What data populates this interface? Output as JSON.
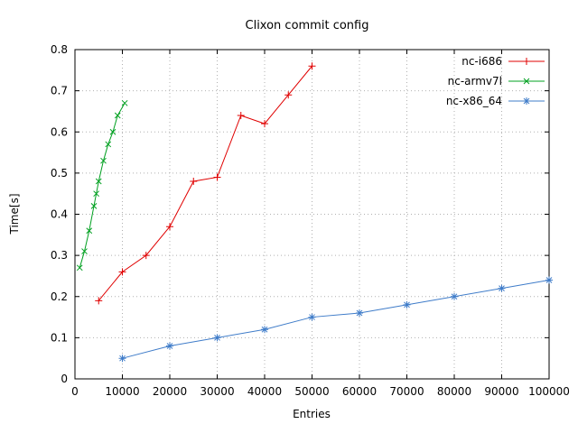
{
  "chart_data": {
    "type": "line",
    "title": "Clixon commit config",
    "xlabel": "Entries",
    "ylabel": "Time[s]",
    "xlim": [
      0,
      100000
    ],
    "ylim": [
      0,
      0.8
    ],
    "xticks": [
      0,
      10000,
      20000,
      30000,
      40000,
      50000,
      60000,
      70000,
      80000,
      90000,
      100000
    ],
    "yticks": [
      0,
      0.1,
      0.2,
      0.3,
      0.4,
      0.5,
      0.6,
      0.7,
      0.8
    ],
    "grid": true,
    "grid_color": "#b0b0b0",
    "border_color": "#000000",
    "legend": {
      "position": "top-right-inside"
    },
    "series": [
      {
        "name": "nc-i686",
        "color": "#e00000",
        "marker": "plus",
        "points": [
          [
            5000,
            0.19
          ],
          [
            10000,
            0.26
          ],
          [
            15000,
            0.3
          ],
          [
            20000,
            0.37
          ],
          [
            25000,
            0.48
          ],
          [
            30000,
            0.49
          ],
          [
            35000,
            0.64
          ],
          [
            40000,
            0.62
          ],
          [
            45000,
            0.69
          ],
          [
            50000,
            0.76
          ]
        ]
      },
      {
        "name": "nc-armv7l",
        "color": "#00a020",
        "marker": "cross",
        "points": [
          [
            1000,
            0.27
          ],
          [
            2000,
            0.31
          ],
          [
            3000,
            0.36
          ],
          [
            4000,
            0.42
          ],
          [
            4500,
            0.45
          ],
          [
            5000,
            0.48
          ],
          [
            6000,
            0.53
          ],
          [
            7000,
            0.57
          ],
          [
            8000,
            0.6
          ],
          [
            9000,
            0.64
          ],
          [
            10500,
            0.67
          ]
        ]
      },
      {
        "name": "nc-x86_64",
        "color": "#3f7cc9",
        "marker": "star",
        "points": [
          [
            10000,
            0.05
          ],
          [
            20000,
            0.08
          ],
          [
            30000,
            0.1
          ],
          [
            40000,
            0.12
          ],
          [
            50000,
            0.15
          ],
          [
            60000,
            0.16
          ],
          [
            70000,
            0.18
          ],
          [
            80000,
            0.2
          ],
          [
            90000,
            0.22
          ],
          [
            100000,
            0.24
          ]
        ]
      }
    ]
  }
}
